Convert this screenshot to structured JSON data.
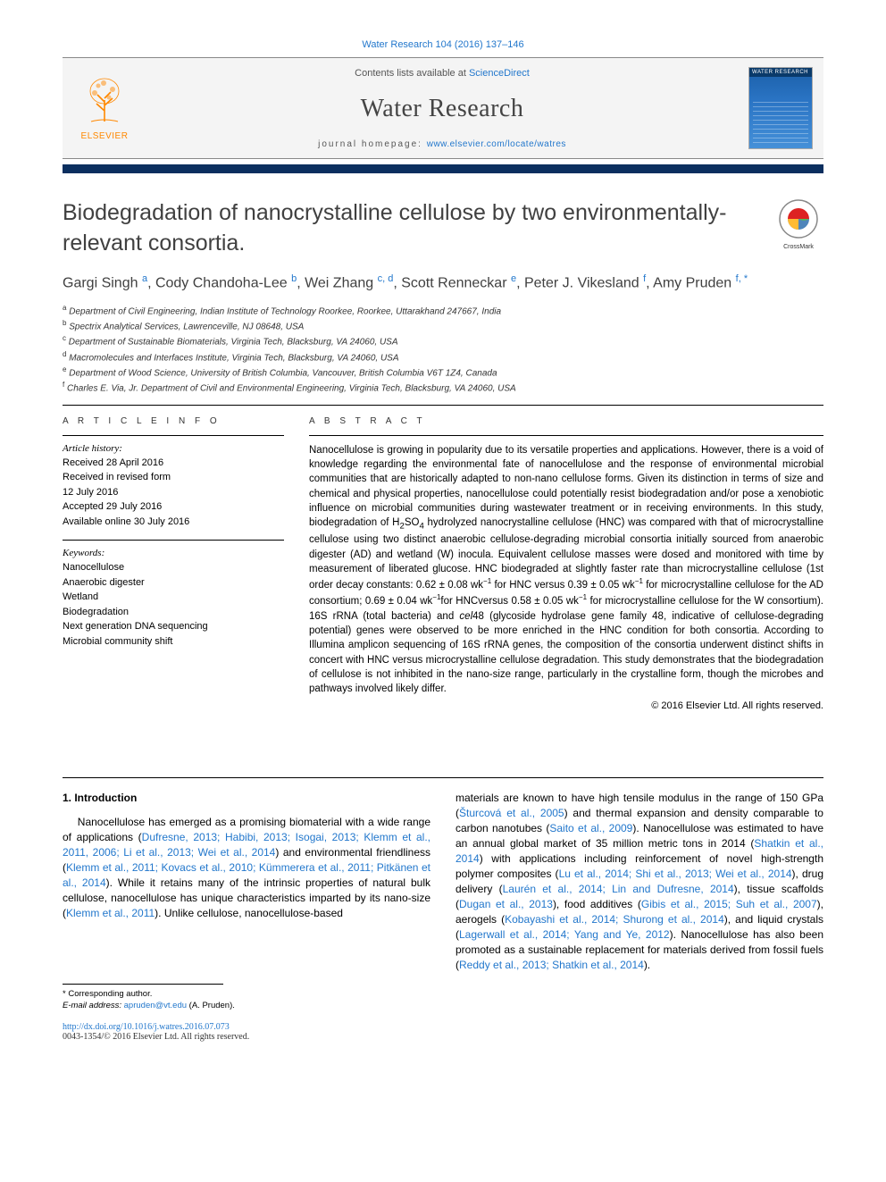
{
  "citation": "Water Research 104 (2016) 137–146",
  "header": {
    "publisher": "ELSEVIER",
    "contents_prefix": "Contents lists available at ",
    "contents_link": "ScienceDirect",
    "journal": "Water Research",
    "homepage_prefix": "journal homepage: ",
    "homepage_url": "www.elsevier.com/locate/watres",
    "cover_label": "WATER RESEARCH"
  },
  "crossmark": "CrossMark",
  "title": "Biodegradation of nanocrystalline cellulose by two environmentally-relevant consortia.",
  "authors_html": "Gargi Singh <sup class='sup'>a</sup>, Cody Chandoha-Lee <sup class='sup'>b</sup>, Wei Zhang <sup class='sup'>c, d</sup>, Scott Renneckar <sup class='sup'>e</sup>, Peter J. Vikesland <sup class='sup'>f</sup>, Amy Pruden <sup class='sup'>f, *</sup>",
  "affiliations": [
    {
      "sup": "a",
      "text": "Department of Civil Engineering, Indian Institute of Technology Roorkee, Roorkee, Uttarakhand 247667, India"
    },
    {
      "sup": "b",
      "text": "Spectrix Analytical Services, Lawrenceville, NJ 08648, USA"
    },
    {
      "sup": "c",
      "text": "Department of Sustainable Biomaterials, Virginia Tech, Blacksburg, VA 24060, USA"
    },
    {
      "sup": "d",
      "text": "Macromolecules and Interfaces Institute, Virginia Tech, Blacksburg, VA 24060, USA"
    },
    {
      "sup": "e",
      "text": "Department of Wood Science, University of British Columbia, Vancouver, British Columbia V6T 1Z4, Canada"
    },
    {
      "sup": "f",
      "text": "Charles E. Via, Jr. Department of Civil and Environmental Engineering, Virginia Tech, Blacksburg, VA 24060, USA"
    }
  ],
  "info": {
    "label": "A R T I C L E   I N F O",
    "history_label": "Article history:",
    "history": [
      "Received 28 April 2016",
      "Received in revised form",
      "12 July 2016",
      "Accepted 29 July 2016",
      "Available online 30 July 2016"
    ],
    "keywords_label": "Keywords:",
    "keywords": [
      "Nanocellulose",
      "Anaerobic digester",
      "Wetland",
      "Biodegradation",
      "Next generation DNA sequencing",
      "Microbial community shift"
    ]
  },
  "abstract": {
    "label": "A B S T R A C T",
    "html": "Nanocellulose is growing in popularity due to its versatile properties and applications. However, there is a void of knowledge regarding the environmental fate of nanocellulose and the response of environmental microbial communities that are historically adapted to non-nano cellulose forms. Given its distinction in terms of size and chemical and physical properties, nanocellulose could potentially resist biodegradation and/or pose a xenobiotic influence on microbial communities during wastewater treatment or in receiving environments. In this study, biodegradation of H<sub>2</sub>SO<sub>4</sub> hydrolyzed nanocrystalline cellulose (HNC) was compared with that of microcrystalline cellulose using two distinct anaerobic cellulose-degrading microbial consortia initially sourced from anaerobic digester (AD) and wetland (W) inocula. Equivalent cellulose masses were dosed and monitored with time by measurement of liberated glucose. HNC biodegraded at slightly faster rate than microcrystalline cellulose (1st order decay constants: 0.62 ± 0.08 wk<sup>−1</sup> for HNC versus 0.39 ± 0.05 wk<sup>−1</sup> for microcrystalline cellulose for the AD consortium; 0.69 ± 0.04 wk<sup>−1</sup>for HNCversus 0.58 ± 0.05 wk<sup>−1</sup> for microcrystalline cellulose for the W consortium). 16S rRNA (total bacteria) and <i>cel</i>48 (glycoside hydrolase gene family 48, indicative of cellulose-degrading potential) genes were observed to be more enriched in the HNC condition for both consortia. According to Illumina amplicon sequencing of 16S rRNA genes, the composition of the consortia underwent distinct shifts in concert with HNC versus microcrystalline cellulose degradation. This study demonstrates that the biodegradation of cellulose is not inhibited in the nano-size range, particularly in the crystalline form, though the microbes and pathways involved likely differ.",
    "copyright": "© 2016 Elsevier Ltd. All rights reserved."
  },
  "intro": {
    "heading": "1. Introduction",
    "p1_html": "Nanocellulose has emerged as a promising biomaterial with a wide range of applications (<span class='cite'>Dufresne, 2013; Habibi, 2013; Isogai, 2013; Klemm et al., 2011, 2006; Li et al., 2013; Wei et al., 2014</span>) and environmental friendliness (<span class='cite'>Klemm et al., 2011; Kovacs et al., 2010; Kümmerera et al., 2011; Pitkänen et al., 2014</span>). While it retains many of the intrinsic properties of natural bulk cellulose, nanocellulose has unique characteristics imparted by its nano-size (<span class='cite'>Klemm et al., 2011</span>). Unlike cellulose, nanocellulose-based",
    "p2_html": "materials are known to have high tensile modulus in the range of 150 GPa (<span class='cite'>Šturcová et al., 2005</span>) and thermal expansion and density comparable to carbon nanotubes (<span class='cite'>Saito et al., 2009</span>). Nanocellulose was estimated to have an annual global market of 35 million metric tons in 2014 (<span class='cite'>Shatkin et al., 2014</span>) with applications including reinforcement of novel high-strength polymer composites (<span class='cite'>Lu et al., 2014; Shi et al., 2013; Wei et al., 2014</span>), drug delivery (<span class='cite'>Laurén et al., 2014; Lin and Dufresne, 2014</span>), tissue scaffolds (<span class='cite'>Dugan et al., 2013</span>), food additives (<span class='cite'>Gibis et al., 2015; Suh et al., 2007</span>), aerogels (<span class='cite'>Kobayashi et al., 2014; Shurong et al., 2014</span>), and liquid crystals (<span class='cite'>Lagerwall et al., 2014; Yang and Ye, 2012</span>). Nanocellulose has also been promoted as a sustainable replacement for materials derived from fossil fuels (<span class='cite'>Reddy et al., 2013; Shatkin et al., 2014</span>)."
  },
  "footer": {
    "corresponding": "* Corresponding author.",
    "email_label": "E-mail address: ",
    "email": "apruden@vt.edu",
    "email_after": " (A. Pruden).",
    "doi": "http://dx.doi.org/10.1016/j.watres.2016.07.073",
    "issn_copyright": "0043-1354/© 2016 Elsevier Ltd. All rights reserved."
  },
  "colors": {
    "link": "#2277cc",
    "rule_dark": "#0b2f5f",
    "orange": "#ff8800"
  }
}
